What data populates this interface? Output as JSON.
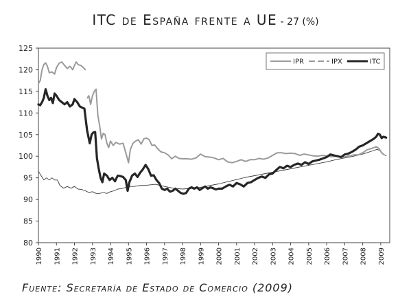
{
  "title_main": "ITC de España frente a UE",
  "title_suffix": " - 27 (%)",
  "source": "Fuente: Secretaría de Estado de Comercio (2009)",
  "chart_data": {
    "type": "line",
    "title": "ITC de España frente a UE - 27 (%)",
    "xlabel": "",
    "ylabel": "",
    "xlim": [
      1990,
      2009.5
    ],
    "ylim": [
      80,
      125
    ],
    "yticks": [
      80,
      85,
      90,
      95,
      100,
      105,
      110,
      115,
      120,
      125
    ],
    "xticks": [
      "1990",
      "1991",
      "1992",
      "1993",
      "1994",
      "1995",
      "1996",
      "1997",
      "1998",
      "1999",
      "2000",
      "2001",
      "2002",
      "2003",
      "2004",
      "2005",
      "2006",
      "2007",
      "2008",
      "2009"
    ],
    "grid": false,
    "legend_position": "top-right",
    "colors": {
      "IPR": "#3a3a3a",
      "IPX": "#9a9a9a",
      "ITC": "#262626"
    },
    "series": [
      {
        "name": "IPR",
        "points": [
          [
            1990.0,
            96.5
          ],
          [
            1990.15,
            95.5
          ],
          [
            1990.3,
            94.5
          ],
          [
            1990.45,
            95.0
          ],
          [
            1990.6,
            94.5
          ],
          [
            1990.75,
            95.0
          ],
          [
            1990.9,
            94.5
          ],
          [
            1991.05,
            94.5
          ],
          [
            1991.2,
            93.2
          ],
          [
            1991.4,
            92.6
          ],
          [
            1991.6,
            93.0
          ],
          [
            1991.8,
            92.6
          ],
          [
            1992.0,
            93.0
          ],
          [
            1992.2,
            92.4
          ],
          [
            1992.4,
            92.3
          ],
          [
            1992.6,
            92.0
          ],
          [
            1992.8,
            91.6
          ],
          [
            1993.0,
            91.8
          ],
          [
            1993.2,
            91.4
          ],
          [
            1993.4,
            91.4
          ],
          [
            1993.6,
            91.6
          ],
          [
            1993.8,
            91.4
          ],
          [
            1994.0,
            91.8
          ],
          [
            1994.2,
            92.0
          ],
          [
            1994.4,
            92.4
          ],
          [
            1994.6,
            92.5
          ],
          [
            1994.8,
            92.7
          ],
          [
            1995.0,
            93.0
          ],
          [
            1995.3,
            93.0
          ],
          [
            1995.6,
            93.2
          ],
          [
            1996.0,
            93.3
          ],
          [
            1996.5,
            93.5
          ],
          [
            1997.0,
            93.0
          ],
          [
            1997.5,
            92.6
          ],
          [
            1998.0,
            92.4
          ],
          [
            1998.5,
            92.6
          ],
          [
            1999.0,
            92.8
          ],
          [
            1999.5,
            93.2
          ],
          [
            2000.0,
            93.6
          ],
          [
            2000.5,
            94.1
          ],
          [
            2001.0,
            94.6
          ],
          [
            2001.5,
            95.1
          ],
          [
            2002.0,
            95.5
          ],
          [
            2002.5,
            95.9
          ],
          [
            2003.0,
            96.3
          ],
          [
            2003.5,
            96.7
          ],
          [
            2004.0,
            97.1
          ],
          [
            2004.5,
            97.5
          ],
          [
            2005.0,
            97.9
          ],
          [
            2005.5,
            98.3
          ],
          [
            2006.0,
            98.7
          ],
          [
            2006.5,
            99.2
          ],
          [
            2007.0,
            99.6
          ],
          [
            2007.5,
            100.0
          ],
          [
            2008.0,
            100.5
          ],
          [
            2008.3,
            100.9
          ],
          [
            2008.6,
            101.3
          ],
          [
            2008.8,
            101.6
          ],
          [
            2009.0,
            101.2
          ],
          [
            2009.15,
            100.5
          ],
          [
            2009.3,
            100.1
          ]
        ]
      },
      {
        "name": "IPX",
        "points": [
          [
            1990.0,
            116.8
          ],
          [
            1990.1,
            117.5
          ],
          [
            1990.2,
            120.0
          ],
          [
            1990.3,
            121.2
          ],
          [
            1990.4,
            121.6
          ],
          [
            1990.5,
            120.8
          ],
          [
            1990.6,
            119.3
          ],
          [
            1990.75,
            119.5
          ],
          [
            1990.9,
            119.0
          ],
          [
            1991.0,
            120.5
          ],
          [
            1991.15,
            121.5
          ],
          [
            1991.3,
            121.8
          ],
          [
            1991.45,
            121.0
          ],
          [
            1991.6,
            120.3
          ],
          [
            1991.75,
            120.8
          ],
          [
            1991.9,
            120.0
          ],
          [
            1992.0,
            121.0
          ],
          [
            1992.1,
            121.8
          ],
          [
            1992.2,
            121.2
          ],
          [
            1992.35,
            121.0
          ],
          [
            1992.5,
            120.5
          ],
          [
            1992.6,
            120.0
          ],
          [
            1992.72,
            113.5
          ],
          [
            1992.8,
            114.0
          ],
          [
            1992.9,
            112.0
          ],
          [
            1993.0,
            114.0
          ],
          [
            1993.1,
            115.0
          ],
          [
            1993.2,
            115.5
          ],
          [
            1993.3,
            109.5
          ],
          [
            1993.4,
            107.0
          ],
          [
            1993.5,
            104.0
          ],
          [
            1993.6,
            105.3
          ],
          [
            1993.7,
            105.0
          ],
          [
            1993.8,
            103.0
          ],
          [
            1993.9,
            102.0
          ],
          [
            1994.0,
            103.5
          ],
          [
            1994.15,
            102.5
          ],
          [
            1994.3,
            103.2
          ],
          [
            1994.5,
            102.8
          ],
          [
            1994.7,
            103.0
          ],
          [
            1994.85,
            100.8
          ],
          [
            1995.0,
            98.5
          ],
          [
            1995.1,
            101.5
          ],
          [
            1995.25,
            103.0
          ],
          [
            1995.4,
            103.5
          ],
          [
            1995.55,
            103.8
          ],
          [
            1995.7,
            102.8
          ],
          [
            1995.85,
            104.0
          ],
          [
            1996.0,
            104.2
          ],
          [
            1996.15,
            103.8
          ],
          [
            1996.3,
            102.5
          ],
          [
            1996.45,
            102.6
          ],
          [
            1996.6,
            101.8
          ],
          [
            1996.8,
            101.0
          ],
          [
            1997.0,
            100.8
          ],
          [
            1997.2,
            100.3
          ],
          [
            1997.4,
            99.4
          ],
          [
            1997.6,
            100.0
          ],
          [
            1997.8,
            99.5
          ],
          [
            1998.0,
            99.4
          ],
          [
            1998.25,
            99.4
          ],
          [
            1998.5,
            99.3
          ],
          [
            1998.75,
            99.6
          ],
          [
            1999.0,
            100.5
          ],
          [
            1999.25,
            99.9
          ],
          [
            1999.5,
            99.8
          ],
          [
            1999.75,
            99.6
          ],
          [
            2000.0,
            99.2
          ],
          [
            2000.25,
            99.5
          ],
          [
            2000.5,
            98.7
          ],
          [
            2000.75,
            98.5
          ],
          [
            2001.0,
            98.8
          ],
          [
            2001.25,
            99.2
          ],
          [
            2001.5,
            98.8
          ],
          [
            2001.75,
            99.2
          ],
          [
            2002.0,
            99.2
          ],
          [
            2002.25,
            99.5
          ],
          [
            2002.5,
            99.3
          ],
          [
            2002.75,
            99.6
          ],
          [
            2003.0,
            100.2
          ],
          [
            2003.25,
            100.8
          ],
          [
            2003.5,
            100.8
          ],
          [
            2003.75,
            100.6
          ],
          [
            2004.0,
            100.7
          ],
          [
            2004.25,
            100.6
          ],
          [
            2004.5,
            100.2
          ],
          [
            2004.75,
            100.5
          ],
          [
            2005.0,
            100.3
          ],
          [
            2005.25,
            100.1
          ],
          [
            2005.5,
            100.0
          ],
          [
            2005.75,
            100.2
          ],
          [
            2006.0,
            100.1
          ],
          [
            2006.25,
            99.9
          ],
          [
            2006.5,
            100.0
          ],
          [
            2006.75,
            99.9
          ],
          [
            2007.0,
            99.8
          ],
          [
            2007.25,
            100.1
          ],
          [
            2007.5,
            100.3
          ],
          [
            2007.75,
            100.3
          ],
          [
            2008.0,
            100.8
          ],
          [
            2008.25,
            101.5
          ],
          [
            2008.5,
            101.8
          ],
          [
            2008.75,
            102.2
          ],
          [
            2008.9,
            101.8
          ],
          [
            2009.05,
            100.8
          ],
          [
            2009.2,
            100.3
          ]
        ]
      },
      {
        "name": "ITC",
        "points": [
          [
            1990.0,
            112.0
          ],
          [
            1990.1,
            111.8
          ],
          [
            1990.2,
            112.5
          ],
          [
            1990.3,
            113.5
          ],
          [
            1990.4,
            115.5
          ],
          [
            1990.5,
            114.0
          ],
          [
            1990.6,
            113.0
          ],
          [
            1990.7,
            113.5
          ],
          [
            1990.8,
            112.3
          ],
          [
            1990.9,
            114.5
          ],
          [
            1991.0,
            114.0
          ],
          [
            1991.15,
            113.0
          ],
          [
            1991.3,
            112.5
          ],
          [
            1991.45,
            112.0
          ],
          [
            1991.6,
            112.5
          ],
          [
            1991.75,
            111.5
          ],
          [
            1991.9,
            112.0
          ],
          [
            1992.0,
            113.2
          ],
          [
            1992.15,
            112.5
          ],
          [
            1992.3,
            111.5
          ],
          [
            1992.45,
            111.2
          ],
          [
            1992.55,
            111.0
          ],
          [
            1992.7,
            106.0
          ],
          [
            1992.85,
            103.0
          ],
          [
            1992.95,
            105.0
          ],
          [
            1993.05,
            105.5
          ],
          [
            1993.15,
            105.6
          ],
          [
            1993.25,
            99.5
          ],
          [
            1993.35,
            97.0
          ],
          [
            1993.45,
            95.0
          ],
          [
            1993.55,
            94.0
          ],
          [
            1993.65,
            96.0
          ],
          [
            1993.8,
            95.5
          ],
          [
            1993.95,
            94.5
          ],
          [
            1994.1,
            95.0
          ],
          [
            1994.25,
            94.2
          ],
          [
            1994.4,
            95.5
          ],
          [
            1994.55,
            95.4
          ],
          [
            1994.7,
            95.2
          ],
          [
            1994.85,
            94.5
          ],
          [
            1994.95,
            92.0
          ],
          [
            1995.05,
            94.0
          ],
          [
            1995.2,
            95.5
          ],
          [
            1995.35,
            96.0
          ],
          [
            1995.5,
            95.2
          ],
          [
            1995.65,
            96.2
          ],
          [
            1995.8,
            97.0
          ],
          [
            1995.95,
            98.0
          ],
          [
            1996.1,
            97.0
          ],
          [
            1996.25,
            95.5
          ],
          [
            1996.4,
            95.6
          ],
          [
            1996.55,
            94.5
          ],
          [
            1996.7,
            93.8
          ],
          [
            1996.85,
            92.5
          ],
          [
            1997.0,
            92.2
          ],
          [
            1997.15,
            92.5
          ],
          [
            1997.3,
            91.8
          ],
          [
            1997.45,
            92.0
          ],
          [
            1997.6,
            92.5
          ],
          [
            1997.75,
            92.0
          ],
          [
            1997.9,
            91.5
          ],
          [
            1998.05,
            91.3
          ],
          [
            1998.2,
            91.5
          ],
          [
            1998.35,
            92.5
          ],
          [
            1998.5,
            92.8
          ],
          [
            1998.65,
            92.5
          ],
          [
            1998.8,
            92.8
          ],
          [
            1998.95,
            92.2
          ],
          [
            1999.1,
            92.6
          ],
          [
            1999.25,
            93.0
          ],
          [
            1999.4,
            92.5
          ],
          [
            1999.55,
            92.8
          ],
          [
            1999.7,
            92.6
          ],
          [
            1999.85,
            92.3
          ],
          [
            2000.0,
            92.5
          ],
          [
            2000.2,
            92.5
          ],
          [
            2000.4,
            93.0
          ],
          [
            2000.6,
            93.4
          ],
          [
            2000.8,
            93.0
          ],
          [
            2001.0,
            93.8
          ],
          [
            2001.2,
            93.5
          ],
          [
            2001.4,
            93.0
          ],
          [
            2001.6,
            93.8
          ],
          [
            2001.8,
            94.0
          ],
          [
            2002.0,
            94.5
          ],
          [
            2002.2,
            95.0
          ],
          [
            2002.4,
            95.3
          ],
          [
            2002.6,
            95.0
          ],
          [
            2002.8,
            95.8
          ],
          [
            2003.0,
            96.0
          ],
          [
            2003.2,
            96.8
          ],
          [
            2003.4,
            97.5
          ],
          [
            2003.6,
            97.2
          ],
          [
            2003.8,
            97.8
          ],
          [
            2004.0,
            97.5
          ],
          [
            2004.2,
            98.0
          ],
          [
            2004.4,
            98.3
          ],
          [
            2004.6,
            98.0
          ],
          [
            2004.8,
            98.6
          ],
          [
            2005.0,
            98.2
          ],
          [
            2005.2,
            98.8
          ],
          [
            2005.4,
            99.0
          ],
          [
            2005.6,
            99.2
          ],
          [
            2005.8,
            99.5
          ],
          [
            2006.0,
            99.8
          ],
          [
            2006.2,
            100.4
          ],
          [
            2006.4,
            100.2
          ],
          [
            2006.6,
            100.0
          ],
          [
            2006.8,
            99.8
          ],
          [
            2007.0,
            100.4
          ],
          [
            2007.2,
            100.6
          ],
          [
            2007.4,
            101.0
          ],
          [
            2007.6,
            101.5
          ],
          [
            2007.8,
            102.2
          ],
          [
            2008.0,
            102.5
          ],
          [
            2008.2,
            103.0
          ],
          [
            2008.4,
            103.5
          ],
          [
            2008.6,
            104.0
          ],
          [
            2008.75,
            104.5
          ],
          [
            2008.85,
            105.2
          ],
          [
            2008.95,
            105.0
          ],
          [
            2009.05,
            104.2
          ],
          [
            2009.15,
            104.5
          ],
          [
            2009.3,
            104.3
          ]
        ]
      }
    ]
  }
}
